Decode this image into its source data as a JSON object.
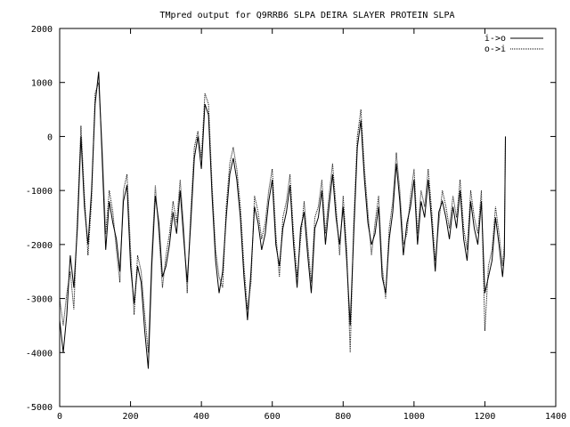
{
  "chart_data": {
    "type": "line",
    "title": "TMpred output for Q9RRB6 SLPA DEIRA SLAYER PROTEIN SLPA",
    "xlabel": "",
    "ylabel": "",
    "xlim": [
      0,
      1400
    ],
    "ylim": [
      -5000,
      2000
    ],
    "x_ticks": [
      0,
      200,
      400,
      600,
      800,
      1000,
      1200,
      1400
    ],
    "y_ticks": [
      -5000,
      -4000,
      -3000,
      -2000,
      -1000,
      0,
      1000,
      2000
    ],
    "x_tick_labels": [
      "0",
      "200",
      "400",
      "600",
      "800",
      "1000",
      "1200",
      "1400"
    ],
    "y_tick_labels": [
      "-5000",
      "-4000",
      "-3000",
      "-2000",
      "-1000",
      "0",
      "1000",
      "2000"
    ],
    "grid": false,
    "legend_position": "top-right",
    "series": [
      {
        "name": "i->o",
        "style": "solid",
        "x": [
          0,
          10,
          20,
          30,
          40,
          50,
          60,
          70,
          80,
          90,
          100,
          110,
          120,
          130,
          140,
          150,
          160,
          170,
          180,
          190,
          200,
          210,
          220,
          230,
          240,
          250,
          260,
          270,
          280,
          290,
          300,
          310,
          320,
          330,
          340,
          350,
          360,
          370,
          380,
          390,
          400,
          410,
          420,
          430,
          440,
          450,
          460,
          470,
          480,
          490,
          500,
          510,
          520,
          530,
          540,
          550,
          560,
          570,
          580,
          590,
          600,
          610,
          620,
          630,
          640,
          650,
          660,
          670,
          680,
          690,
          700,
          710,
          720,
          730,
          740,
          750,
          760,
          770,
          780,
          790,
          800,
          810,
          820,
          830,
          840,
          850,
          860,
          870,
          880,
          890,
          900,
          910,
          920,
          930,
          940,
          950,
          960,
          970,
          980,
          990,
          1000,
          1010,
          1020,
          1030,
          1040,
          1050,
          1060,
          1070,
          1080,
          1090,
          1100,
          1110,
          1120,
          1130,
          1140,
          1150,
          1160,
          1170,
          1180,
          1190,
          1200,
          1210,
          1220,
          1230,
          1240,
          1250,
          1255,
          1258
        ],
        "y": [
          -3400,
          -4000,
          -3300,
          -2200,
          -2800,
          -1700,
          0,
          -1300,
          -2000,
          -1000,
          600,
          1200,
          -400,
          -2100,
          -1200,
          -1600,
          -1900,
          -2500,
          -1200,
          -900,
          -2400,
          -3100,
          -2400,
          -2700,
          -3600,
          -4300,
          -2400,
          -1100,
          -1600,
          -2600,
          -2400,
          -2000,
          -1400,
          -1800,
          -1000,
          -1900,
          -2700,
          -1600,
          -400,
          0,
          -600,
          600,
          400,
          -1100,
          -2300,
          -2900,
          -2500,
          -1500,
          -700,
          -400,
          -800,
          -1500,
          -2600,
          -3400,
          -2500,
          -1300,
          -1600,
          -2100,
          -1800,
          -1200,
          -800,
          -2000,
          -2400,
          -1700,
          -1400,
          -900,
          -2000,
          -2800,
          -1700,
          -1400,
          -2200,
          -2900,
          -1700,
          -1500,
          -1000,
          -2000,
          -1300,
          -700,
          -1500,
          -2000,
          -1300,
          -2300,
          -3500,
          -1800,
          -200,
          300,
          -800,
          -1600,
          -2000,
          -1800,
          -1300,
          -2600,
          -2900,
          -1900,
          -1400,
          -500,
          -1200,
          -2200,
          -1600,
          -1300,
          -800,
          -2000,
          -1200,
          -1500,
          -800,
          -1600,
          -2500,
          -1400,
          -1200,
          -1500,
          -1900,
          -1300,
          -1700,
          -1000,
          -1900,
          -2300,
          -1200,
          -1700,
          -2000,
          -1200,
          -2900,
          -2600,
          -2300,
          -1500,
          -2000,
          -2600,
          -2200,
          0
        ]
      },
      {
        "name": "o->i",
        "style": "dotted",
        "x": [
          0,
          10,
          20,
          30,
          40,
          50,
          60,
          70,
          80,
          90,
          100,
          110,
          120,
          130,
          140,
          150,
          160,
          170,
          180,
          190,
          200,
          210,
          220,
          230,
          240,
          250,
          260,
          270,
          280,
          290,
          300,
          310,
          320,
          330,
          340,
          350,
          360,
          370,
          380,
          390,
          400,
          410,
          420,
          430,
          440,
          450,
          460,
          470,
          480,
          490,
          500,
          510,
          520,
          530,
          540,
          550,
          560,
          570,
          580,
          590,
          600,
          610,
          620,
          630,
          640,
          650,
          660,
          670,
          680,
          690,
          700,
          710,
          720,
          730,
          740,
          750,
          760,
          770,
          780,
          790,
          800,
          810,
          820,
          830,
          840,
          850,
          860,
          870,
          880,
          890,
          900,
          910,
          920,
          930,
          940,
          950,
          960,
          970,
          980,
          990,
          1000,
          1010,
          1020,
          1030,
          1040,
          1050,
          1060,
          1070,
          1080,
          1090,
          1100,
          1110,
          1120,
          1130,
          1140,
          1150,
          1160,
          1170,
          1180,
          1190,
          1200,
          1210,
          1220,
          1230,
          1240,
          1250,
          1255,
          1258
        ],
        "y": [
          -3000,
          -3500,
          -2900,
          -2500,
          -3200,
          -1500,
          200,
          -1100,
          -2200,
          -1200,
          800,
          1000,
          -200,
          -1800,
          -1000,
          -1400,
          -2100,
          -2700,
          -1000,
          -700,
          -2100,
          -3300,
          -2200,
          -2500,
          -3300,
          -4000,
          -2200,
          -900,
          -1800,
          -2800,
          -2200,
          -1800,
          -1200,
          -1600,
          -800,
          -1700,
          -2900,
          -1400,
          -200,
          100,
          -400,
          800,
          600,
          -900,
          -2100,
          -2600,
          -2800,
          -1300,
          -500,
          -200,
          -600,
          -1300,
          -2400,
          -3200,
          -2700,
          -1100,
          -1400,
          -1900,
          -1600,
          -1000,
          -600,
          -1800,
          -2600,
          -1500,
          -1200,
          -700,
          -1800,
          -2600,
          -1900,
          -1200,
          -2000,
          -2700,
          -1500,
          -1300,
          -800,
          -1800,
          -1100,
          -500,
          -1300,
          -2200,
          -1100,
          -2100,
          -4000,
          -1600,
          0,
          500,
          -600,
          -1400,
          -2200,
          -1600,
          -1100,
          -2400,
          -3000,
          -1700,
          -1200,
          -300,
          -1000,
          -2000,
          -1800,
          -1100,
          -600,
          -1800,
          -1000,
          -1300,
          -600,
          -1400,
          -2300,
          -1600,
          -1000,
          -1300,
          -1700,
          -1100,
          -1500,
          -800,
          -1700,
          -2100,
          -1000,
          -1500,
          -1800,
          -1000,
          -3600,
          -2400,
          -2100,
          -1300,
          -1800,
          -2400,
          -2000,
          0
        ]
      }
    ]
  }
}
